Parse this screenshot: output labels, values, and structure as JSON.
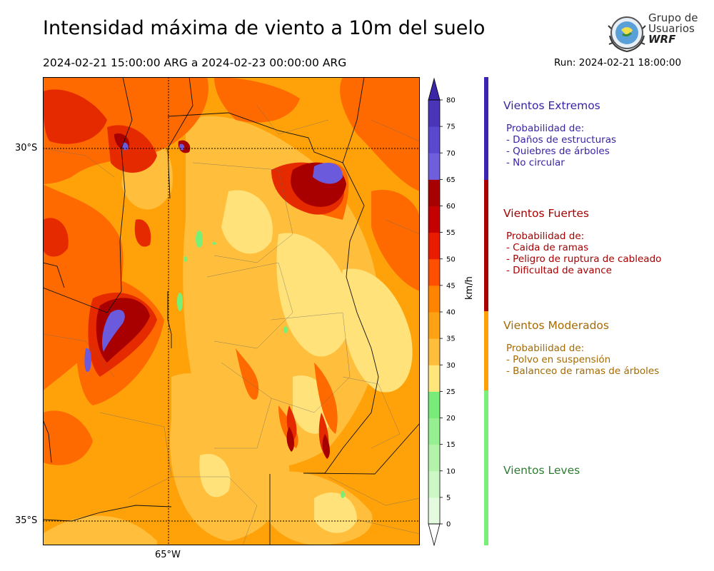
{
  "header": {
    "title": "Intensidad máxima de viento a 10m del suelo",
    "period": "2024-02-21 15:00:00 ARG  a  2024-02-23 00:00:00 ARG",
    "run": "Run: 2024-02-21 18:00:00"
  },
  "logo": {
    "line1": "Grupo de",
    "line2": "Usuarios",
    "line3": "WRF"
  },
  "map": {
    "lat_labels": [
      "30°S",
      "35°S"
    ],
    "lon_label": "65°W",
    "colors": {
      "orange": "#ffa20a",
      "light_orange": "#ffbe3c",
      "yellow": "#ffe27a",
      "orange_red": "#ff6a00",
      "red": "#e62a00",
      "dark_red": "#a80000",
      "purple": "#6c5adc",
      "green": "#78f078"
    }
  },
  "colorbar": {
    "unit": "km/h",
    "ticks": [
      "0",
      "5",
      "10",
      "15",
      "20",
      "25",
      "30",
      "35",
      "40",
      "45",
      "50",
      "55",
      "60",
      "65",
      "70",
      "75",
      "80"
    ],
    "colors": [
      "#e5fbe0",
      "#cdf7c5",
      "#b4f3aa",
      "#96ef90",
      "#78eb78",
      "#fee57c",
      "#febd3c",
      "#fea213",
      "#ff8400",
      "#ff4f00",
      "#e91b00",
      "#c50000",
      "#a60000",
      "#6f5fdc",
      "#5a48cf",
      "#4a34b8"
    ],
    "max_color": "#3d25a8"
  },
  "categories": [
    {
      "title": "Vientos Extremos",
      "color": "#3b23a6",
      "band_color": "#3b23b4",
      "lines": [
        "Probabilidad de:",
        "- Daños de estructuras",
        "- Quiebres de árboles",
        "- No circular"
      ]
    },
    {
      "title": "Vientos Fuertes",
      "color": "#a80000",
      "band_color": "#a80000",
      "lines": [
        "Probabilidad de:",
        "- Caida de ramas",
        "- Peligro de ruptura de cableado",
        "- Dificultad de avance"
      ]
    },
    {
      "title": "Vientos Moderados",
      "color": "#a66a00",
      "band_color": "#ff9f00",
      "lines": [
        "Probabilidad de:",
        "- Polvo en suspensión",
        "- Balanceo de ramas de árboles"
      ]
    },
    {
      "title": "Vientos Leves",
      "color": "#2e7d32",
      "band_color": "#78f078",
      "lines": []
    }
  ]
}
